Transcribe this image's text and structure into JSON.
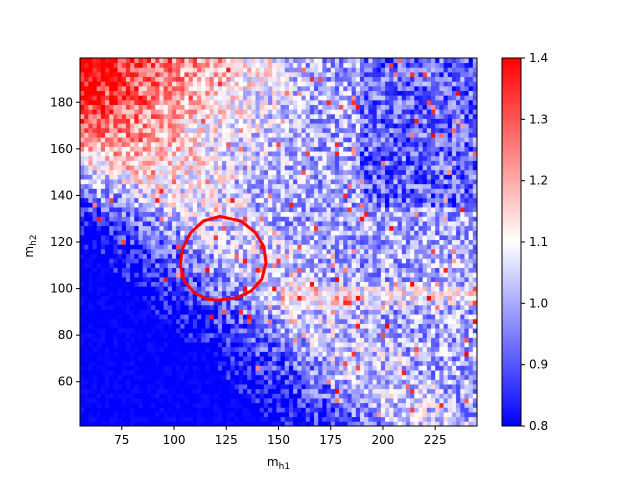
{
  "chart_data": {
    "type": "heatmap",
    "title": "",
    "xlabel": "m_{h1}",
    "ylabel": "m_{h2}",
    "xlim": [
      55,
      245
    ],
    "ylim": [
      41,
      199
    ],
    "bin_size": 2,
    "xticks": [
      75,
      100,
      125,
      150,
      175,
      200,
      225
    ],
    "yticks": [
      60,
      80,
      100,
      120,
      140,
      160,
      180
    ],
    "colorbar": {
      "min": 0.8,
      "max": 1.4,
      "ticks": [
        0.8,
        0.9,
        1.0,
        1.1,
        1.2,
        1.3,
        1.4
      ],
      "colormap": "bwr",
      "colors": [
        "#0000ff",
        "#ffffff",
        "#ff0000"
      ]
    },
    "grid": false,
    "ratio_field": {
      "description_levels": "blue ~0.8 in lower-left corner (low m_h1 and low m_h2), ~1.0 in central band, white/red ~1.1-1.4 scattered in upper-left region and along a horizontal band near m_h2 ~ 95-100 for m_h1 > 150",
      "lower_left_value": 0.8,
      "center_value": 1.0,
      "upper_left_value": 1.15,
      "band_y": 97,
      "band_value": 1.12
    },
    "contour": {
      "color": "#ff0000",
      "points": [
        [
          121,
          95
        ],
        [
          130,
          96
        ],
        [
          137,
          99
        ],
        [
          142,
          104
        ],
        [
          144,
          111
        ],
        [
          143,
          118
        ],
        [
          139,
          124
        ],
        [
          132,
          129
        ],
        [
          122,
          131
        ],
        [
          114,
          129
        ],
        [
          108,
          124
        ],
        [
          104,
          117
        ],
        [
          103,
          110
        ],
        [
          105,
          103
        ],
        [
          110,
          98
        ],
        [
          116,
          95.5
        ],
        [
          121,
          95
        ]
      ]
    }
  }
}
